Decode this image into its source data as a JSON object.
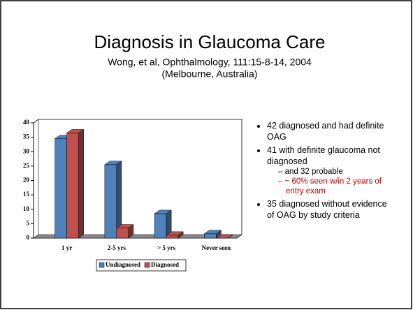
{
  "slide": {
    "title": "Diagnosis in Glaucoma Care",
    "subtitle": [
      "Wong, et al, Ophthalmology, 111:15-8-14, 2004",
      "(Melbourne, Australia)"
    ],
    "bullets": [
      {
        "text": "42 diagnosed and had definite OAG"
      },
      {
        "text": "41 with definite glaucoma not diagnosed",
        "sub": [
          "and 32 probable",
          "~ 60% seen w/in 2 years of entry exam"
        ]
      },
      {
        "text": "35 diagnosed without evidence of OAG by study criteria"
      }
    ]
  },
  "chart_data": {
    "type": "bar3d",
    "categories": [
      "1 yr",
      "2-5 yrs",
      "> 5 yrs",
      "Never seen"
    ],
    "series": [
      {
        "name": "Undiagnosed",
        "color": "#4f81bd",
        "values": [
          34.5,
          25.5,
          8.5,
          1.5
        ]
      },
      {
        "name": "Diagnosed",
        "color": "#c0504d",
        "values": [
          36.5,
          3.5,
          1,
          0
        ]
      }
    ],
    "ylim": [
      0,
      40
    ],
    "yticks": [
      0,
      5,
      10,
      15,
      20,
      25,
      30,
      35,
      40
    ]
  }
}
